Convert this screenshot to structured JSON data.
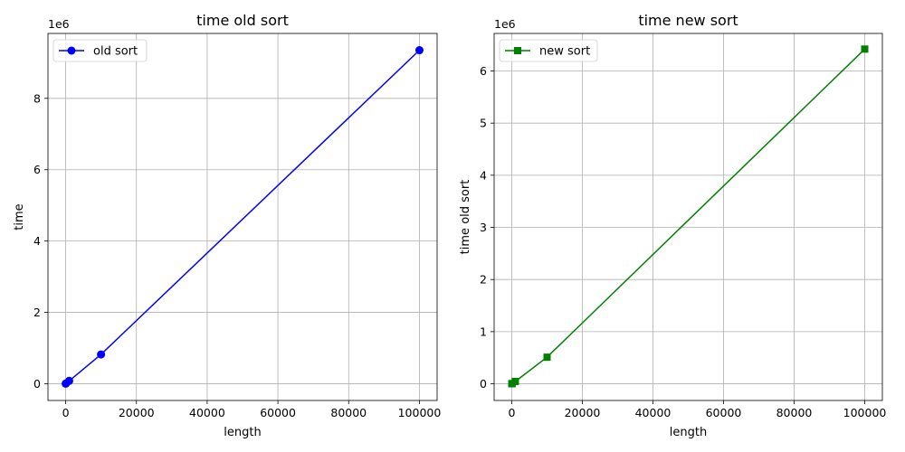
{
  "chart_data": [
    {
      "type": "line",
      "title": "time old sort",
      "xlabel": "length",
      "ylabel": "time",
      "y_offset_label": "1e6",
      "grid": true,
      "legend_position": "top-left",
      "xlim": [
        -5000,
        105000
      ],
      "ylim": [
        -470000,
        9820000
      ],
      "x_ticks": [
        0,
        20000,
        40000,
        60000,
        80000,
        100000
      ],
      "x_tick_labels": [
        "0",
        "20000",
        "40000",
        "60000",
        "80000",
        "100000"
      ],
      "y_ticks": [
        0,
        2000000,
        4000000,
        6000000,
        8000000
      ],
      "y_tick_labels": [
        "0",
        "2",
        "4",
        "6",
        "8"
      ],
      "series": [
        {
          "name": "old sort",
          "color": "#0000ff",
          "marker": "circle",
          "x": [
            10,
            100,
            1000,
            10000,
            100000
          ],
          "y": [
            1000,
            9000,
            80000,
            820000,
            9350000
          ]
        }
      ]
    },
    {
      "type": "line",
      "title": "time new sort",
      "xlabel": "length",
      "ylabel": "time old sort",
      "y_offset_label": "1e6",
      "grid": true,
      "legend_position": "top-left",
      "xlim": [
        -5000,
        105000
      ],
      "ylim": [
        -320000,
        6720000
      ],
      "x_ticks": [
        0,
        20000,
        40000,
        60000,
        80000,
        100000
      ],
      "x_tick_labels": [
        "0",
        "20000",
        "40000",
        "60000",
        "80000",
        "100000"
      ],
      "y_ticks": [
        0,
        1000000,
        2000000,
        3000000,
        4000000,
        5000000,
        6000000
      ],
      "y_tick_labels": [
        "0",
        "1",
        "2",
        "3",
        "4",
        "5",
        "6"
      ],
      "series": [
        {
          "name": "new sort",
          "color": "#008000",
          "marker": "square",
          "x": [
            10,
            100,
            1000,
            10000,
            100000
          ],
          "y": [
            1000,
            5000,
            45000,
            510000,
            6420000
          ]
        }
      ]
    }
  ]
}
